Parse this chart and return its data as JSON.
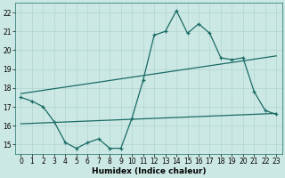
{
  "xlabel": "Humidex (Indice chaleur)",
  "x": [
    0,
    1,
    2,
    3,
    4,
    5,
    6,
    7,
    8,
    9,
    10,
    11,
    12,
    13,
    14,
    15,
    16,
    17,
    18,
    19,
    20,
    21,
    22,
    23
  ],
  "y_main": [
    17.5,
    17.3,
    17.0,
    16.2,
    15.1,
    14.8,
    15.1,
    15.3,
    14.8,
    14.8,
    16.4,
    18.4,
    20.8,
    21.0,
    22.1,
    20.9,
    21.4,
    20.9,
    19.6,
    19.5,
    19.6,
    17.8,
    16.8,
    16.6
  ],
  "reg_line1_x": [
    0,
    23
  ],
  "reg_line1_y": [
    17.7,
    19.7
  ],
  "reg_line2_x": [
    0,
    23
  ],
  "reg_line2_y": [
    16.1,
    16.65
  ],
  "ylim": [
    14.5,
    22.5
  ],
  "yticks": [
    15,
    16,
    17,
    18,
    19,
    20,
    21,
    22
  ],
  "xticks": [
    0,
    1,
    2,
    3,
    4,
    5,
    6,
    7,
    8,
    9,
    10,
    11,
    12,
    13,
    14,
    15,
    16,
    17,
    18,
    19,
    20,
    21,
    22,
    23
  ],
  "bg_color": "#cce8e4",
  "line_color": "#1a6b65",
  "grid_color": "#b0d4cf",
  "figsize": [
    3.2,
    2.0
  ],
  "dpi": 100
}
